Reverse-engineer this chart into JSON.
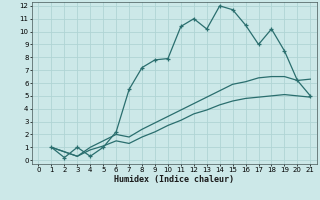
{
  "xlabel": "Humidex (Indice chaleur)",
  "xlim": [
    -0.5,
    21.5
  ],
  "ylim": [
    -0.3,
    12.3
  ],
  "xticks": [
    0,
    1,
    2,
    3,
    4,
    5,
    6,
    7,
    8,
    9,
    10,
    11,
    12,
    13,
    14,
    15,
    16,
    17,
    18,
    19,
    20,
    21
  ],
  "yticks": [
    0,
    1,
    2,
    3,
    4,
    5,
    6,
    7,
    8,
    9,
    10,
    11,
    12
  ],
  "bg_color": "#cce8e8",
  "line_color": "#2a6e6e",
  "grid_color": "#b0d4d4",
  "line1_x": [
    1,
    2,
    3,
    4,
    5,
    6,
    7,
    8,
    9,
    10,
    11,
    12,
    13,
    14,
    15,
    16,
    17,
    18,
    19,
    20,
    21
  ],
  "line1_y": [
    1.0,
    0.2,
    1.0,
    0.3,
    1.0,
    2.2,
    5.5,
    7.2,
    7.8,
    7.9,
    10.4,
    11.0,
    10.2,
    12.0,
    11.7,
    10.5,
    9.0,
    10.2,
    8.5,
    6.2,
    5.0
  ],
  "line2_x": [
    1,
    3,
    4,
    5,
    6,
    7,
    8,
    9,
    10,
    11,
    12,
    13,
    14,
    15,
    16,
    17,
    18,
    19,
    20,
    21
  ],
  "line2_y": [
    1.0,
    0.3,
    1.0,
    1.5,
    2.0,
    1.8,
    2.4,
    2.9,
    3.4,
    3.9,
    4.4,
    4.9,
    5.4,
    5.9,
    6.1,
    6.4,
    6.5,
    6.5,
    6.2,
    6.3
  ],
  "line3_x": [
    1,
    3,
    4,
    5,
    6,
    7,
    8,
    9,
    10,
    11,
    12,
    13,
    14,
    15,
    16,
    17,
    18,
    19,
    20,
    21
  ],
  "line3_y": [
    1.0,
    0.3,
    0.8,
    1.1,
    1.5,
    1.3,
    1.8,
    2.2,
    2.7,
    3.1,
    3.6,
    3.9,
    4.3,
    4.6,
    4.8,
    4.9,
    5.0,
    5.1,
    5.0,
    4.9
  ]
}
